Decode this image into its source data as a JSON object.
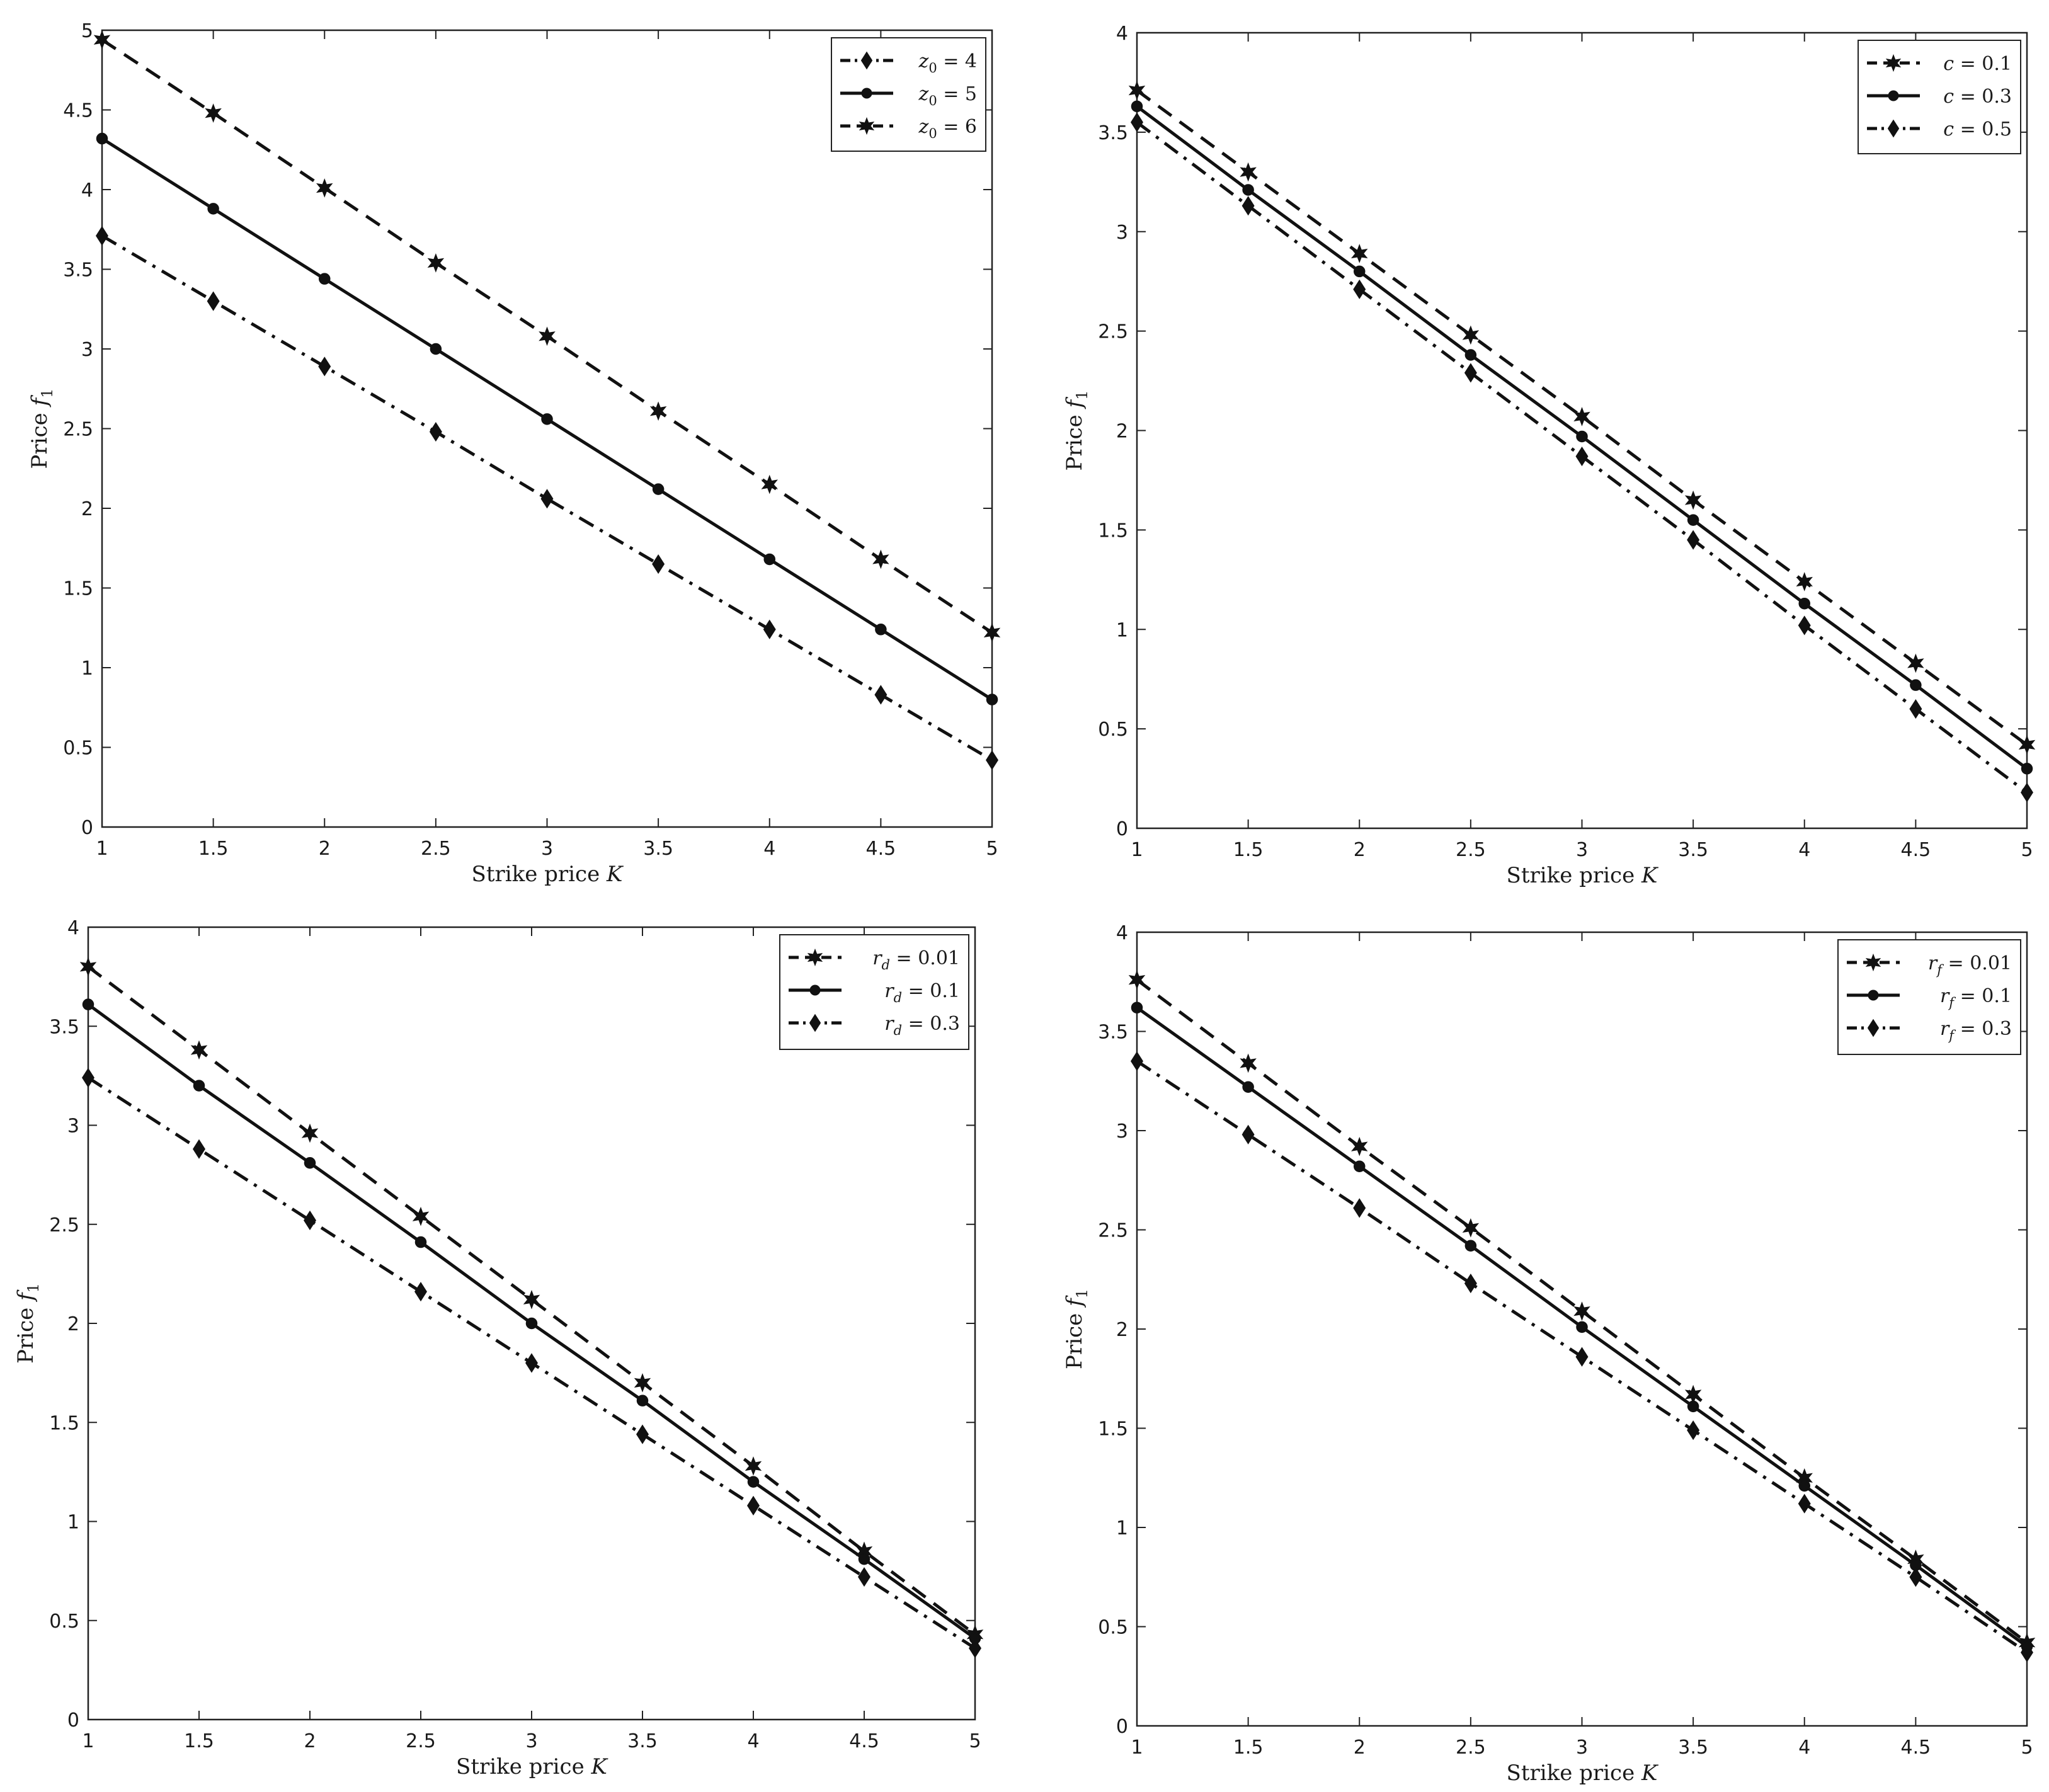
{
  "chart_data": [
    {
      "type": "line",
      "xlabel": "Strike price K",
      "ylabel": "Price f1",
      "xlim": [
        1,
        5
      ],
      "ylim": [
        0,
        5
      ],
      "x_ticks": [
        "1",
        "1.5",
        "2",
        "2.5",
        "3",
        "3.5",
        "4",
        "4.5",
        "5"
      ],
      "y_ticks": [
        "0",
        "0.5",
        "1",
        "1.5",
        "2",
        "2.5",
        "3",
        "3.5",
        "4",
        "4.5",
        "5"
      ],
      "legend_position": "top-right",
      "grid": false,
      "x": [
        1,
        1.5,
        2,
        2.5,
        3,
        3.5,
        4,
        4.5,
        5
      ],
      "series": [
        {
          "name": "z0 = 4",
          "marker": "diamond",
          "line": "dashdot",
          "values": [
            3.71,
            3.3,
            2.89,
            2.48,
            2.06,
            1.65,
            1.24,
            0.83,
            0.42
          ]
        },
        {
          "name": "z0 = 5",
          "marker": "circle",
          "line": "solid",
          "values": [
            4.32,
            3.88,
            3.44,
            3.0,
            2.56,
            2.12,
            1.68,
            1.24,
            0.8
          ]
        },
        {
          "name": "z0 = 6",
          "marker": "hexagram",
          "line": "dashed",
          "values": [
            4.94,
            4.48,
            4.01,
            3.54,
            3.08,
            2.61,
            2.15,
            1.68,
            1.22
          ]
        }
      ]
    },
    {
      "type": "line",
      "xlabel": "Strike price K",
      "ylabel": "Price f1",
      "xlim": [
        1,
        5
      ],
      "ylim": [
        0,
        4
      ],
      "x_ticks": [
        "1",
        "1.5",
        "2",
        "2.5",
        "3",
        "3.5",
        "4",
        "4.5",
        "5"
      ],
      "y_ticks": [
        "0",
        "0.5",
        "1",
        "1.5",
        "2",
        "2.5",
        "3",
        "3.5",
        "4"
      ],
      "legend_position": "top-right",
      "grid": false,
      "x": [
        1,
        1.5,
        2,
        2.5,
        3,
        3.5,
        4,
        4.5,
        5
      ],
      "series": [
        {
          "name": "c = 0.1",
          "marker": "hexagram",
          "line": "dashed",
          "values": [
            3.71,
            3.3,
            2.89,
            2.48,
            2.07,
            1.65,
            1.24,
            0.83,
            0.42
          ]
        },
        {
          "name": "c = 0.3",
          "marker": "circle",
          "line": "solid",
          "values": [
            3.63,
            3.21,
            2.8,
            2.38,
            1.97,
            1.55,
            1.13,
            0.72,
            0.3
          ]
        },
        {
          "name": "c = 0.5",
          "marker": "diamond",
          "line": "dashdot",
          "values": [
            3.55,
            3.13,
            2.71,
            2.29,
            1.87,
            1.45,
            1.02,
            0.6,
            0.18
          ]
        }
      ]
    },
    {
      "type": "line",
      "xlabel": "Strike price K",
      "ylabel": "Price f1",
      "xlim": [
        1,
        5
      ],
      "ylim": [
        0,
        4
      ],
      "x_ticks": [
        "1",
        "1.5",
        "2",
        "2.5",
        "3",
        "3.5",
        "4",
        "4.5",
        "5"
      ],
      "y_ticks": [
        "0",
        "0.5",
        "1",
        "1.5",
        "2",
        "2.5",
        "3",
        "3.5",
        "4"
      ],
      "legend_position": "top-right",
      "grid": false,
      "x": [
        1,
        1.5,
        2,
        2.5,
        3,
        3.5,
        4,
        4.5,
        5
      ],
      "series": [
        {
          "name": "rd = 0.01",
          "marker": "hexagram",
          "line": "dashed",
          "values": [
            3.8,
            3.38,
            2.96,
            2.54,
            2.12,
            1.7,
            1.28,
            0.85,
            0.43
          ]
        },
        {
          "name": "rd = 0.1",
          "marker": "circle",
          "line": "solid",
          "values": [
            3.61,
            3.2,
            2.81,
            2.41,
            2.0,
            1.61,
            1.2,
            0.81,
            0.41
          ]
        },
        {
          "name": "rd = 0.3",
          "marker": "diamond",
          "line": "dashdot",
          "values": [
            3.24,
            2.88,
            2.52,
            2.16,
            1.8,
            1.44,
            1.08,
            0.72,
            0.36
          ]
        }
      ]
    },
    {
      "type": "line",
      "xlabel": "Strike price K",
      "ylabel": "Price f1",
      "xlim": [
        1,
        5
      ],
      "ylim": [
        0,
        4
      ],
      "x_ticks": [
        "1",
        "1.5",
        "2",
        "2.5",
        "3",
        "3.5",
        "4",
        "4.5",
        "5"
      ],
      "y_ticks": [
        "0",
        "0.5",
        "1",
        "1.5",
        "2",
        "2.5",
        "3",
        "3.5",
        "4"
      ],
      "legend_position": "top-right",
      "grid": false,
      "x": [
        1,
        1.5,
        2,
        2.5,
        3,
        3.5,
        4,
        4.5,
        5
      ],
      "series": [
        {
          "name": "rf = 0.01",
          "marker": "hexagram",
          "line": "dashed",
          "values": [
            3.76,
            3.34,
            2.92,
            2.51,
            2.09,
            1.67,
            1.25,
            0.84,
            0.42
          ]
        },
        {
          "name": "rf = 0.1",
          "marker": "circle",
          "line": "solid",
          "values": [
            3.62,
            3.22,
            2.82,
            2.42,
            2.01,
            1.61,
            1.21,
            0.81,
            0.4
          ]
        },
        {
          "name": "rf = 0.3",
          "marker": "diamond",
          "line": "dashdot",
          "values": [
            3.35,
            2.98,
            2.61,
            2.23,
            1.86,
            1.49,
            1.12,
            0.75,
            0.37
          ]
        }
      ]
    }
  ]
}
